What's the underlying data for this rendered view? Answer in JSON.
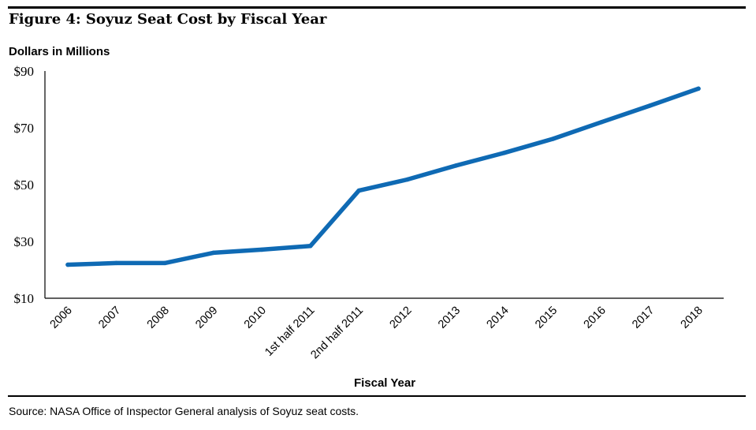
{
  "figure": {
    "title": "Figure 4:  Soyuz Seat Cost by Fiscal Year",
    "y_unit_label": "Dollars in Millions",
    "source": "Source:   NASA Office of Inspector General analysis of Soyuz seat costs."
  },
  "colors": {
    "line": "#0f6ab4",
    "axis": "#000000"
  },
  "chart_data": {
    "type": "line",
    "title": "Figure 4:  Soyuz Seat Cost by Fiscal Year",
    "xlabel": "Fiscal Year",
    "ylabel": "Dollars in Millions",
    "ylim": [
      10,
      90
    ],
    "yticks": [
      10,
      30,
      50,
      70,
      90
    ],
    "ytick_labels": [
      "$10",
      "$30",
      "$50",
      "$70",
      "$90"
    ],
    "grid": false,
    "categories": [
      "2006",
      "2007",
      "2008",
      "2009",
      "2010",
      "1st half 2011",
      "2nd half 2011",
      "2012",
      "2013",
      "2014",
      "2015",
      "2016",
      "2017",
      "2018"
    ],
    "series": [
      {
        "values": [
          21.8,
          22.4,
          22.4,
          26.0,
          27.1,
          28.4,
          47.9,
          51.8,
          56.7,
          61.2,
          66.1,
          72.0,
          77.8,
          83.8
        ]
      }
    ]
  }
}
